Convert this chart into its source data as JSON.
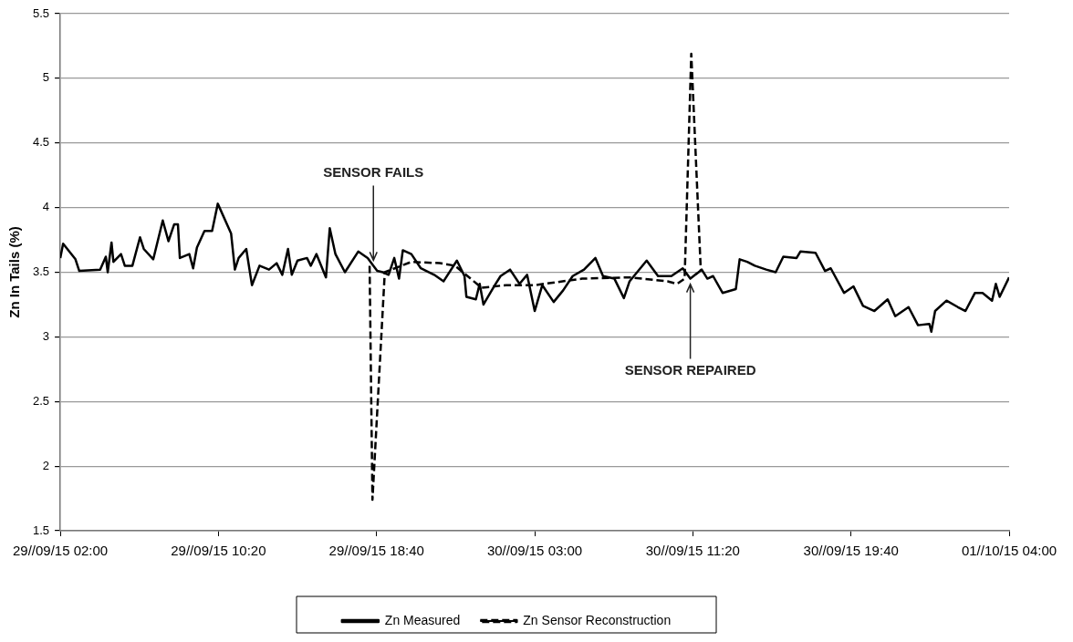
{
  "chart_data": {
    "type": "line",
    "ylabel": "Zn In Tails (%)",
    "xlim": [
      "--09-29T02:00",
      "--10-01T04:00"
    ],
    "xticks": [
      {
        "value": "--09-29T02:00",
        "label": "29//09/15 02:00"
      },
      {
        "value": "--09-29T10:20",
        "label": "29//09/15 10:20"
      },
      {
        "value": "--09-29T18:40",
        "label": "29//09/15 18:40"
      },
      {
        "value": "--09-30T03:00",
        "label": "30//09/15 03:00"
      },
      {
        "value": "--09-30T11:20",
        "label": "30//09/15 11:20"
      },
      {
        "value": "--09-30T19:40",
        "label": "30//09/15 19:40"
      },
      {
        "value": "--10-01T04:00",
        "label": "01//10/15 04:00"
      }
    ],
    "ylim": [
      1.5,
      5.5
    ],
    "yticks": [
      1.5,
      2,
      2.5,
      3,
      3.5,
      4,
      4.5,
      5,
      5.5
    ],
    "grid": "y",
    "legend": "bottom",
    "marker": "none",
    "annotations": [
      {
        "text": "SENSOR FAILS",
        "x": "--09-29T18:30",
        "y": 3.55
      },
      {
        "text": "SENSOR REPAIRED",
        "x": "--09-30T11:12",
        "y": 3.45
      }
    ],
    "series": [
      {
        "name": "Zn Measured",
        "color": "#000000",
        "line_style": "solid",
        "x": [
          "--09-29T02:00",
          "--09-29T02:09",
          "--09-29T02:48",
          "--09-29T03:00",
          "--09-29T04:06",
          "--09-29T04:24",
          "--09-29T04:30",
          "--09-29T04:42",
          "--09-29T04:48",
          "--09-29T05:12",
          "--09-29T05:24",
          "--09-29T05:48",
          "--09-29T06:12",
          "--09-29T06:24",
          "--09-29T06:54",
          "--09-29T07:24",
          "--09-29T07:42",
          "--09-29T08:00",
          "--09-29T08:12",
          "--09-29T08:18",
          "--09-29T08:48",
          "--09-29T09:00",
          "--09-29T09:12",
          "--09-29T09:36",
          "--09-29T10:00",
          "--09-29T10:18",
          "--09-29T11:00",
          "--09-29T11:12",
          "--09-29T11:24",
          "--09-29T11:48",
          "--09-29T12:06",
          "--09-29T12:30",
          "--09-29T13:00",
          "--09-29T13:24",
          "--09-29T13:42",
          "--09-29T14:00",
          "--09-29T14:12",
          "--09-29T14:30",
          "--09-29T15:00",
          "--09-29T15:12",
          "--09-29T15:30",
          "--09-29T16:00",
          "--09-29T16:12",
          "--09-29T16:30",
          "--09-29T17:00",
          "--09-29T17:42",
          "--09-29T18:12",
          "--09-29T18:30",
          "--09-29T18:42",
          "--09-29T19:00",
          "--09-29T19:18",
          "--09-29T19:36",
          "--09-29T19:51",
          "--09-29T20:03",
          "--09-29T20:30",
          "--09-29T21:00",
          "--09-29T21:42",
          "--09-29T22:12",
          "--09-29T22:54",
          "--09-29T23:18",
          "--09-29T23:24",
          "--09-29T23:54",
          "--09-30T00:06",
          "--09-30T00:18",
          "--09-30T00:54",
          "--09-30T01:12",
          "--09-30T01:42",
          "--09-30T02:12",
          "--09-30T02:36",
          "--09-30T03:00",
          "--09-30T03:24",
          "--09-30T04:00",
          "--09-30T04:30",
          "--09-30T05:00",
          "--09-30T05:36",
          "--09-30T06:12",
          "--09-30T06:36",
          "--09-30T07:12",
          "--09-30T07:42",
          "--09-30T08:00",
          "--09-30T08:54",
          "--09-30T09:30",
          "--09-30T10:12",
          "--09-30T10:48",
          "--09-30T11:12",
          "--09-30T11:48",
          "--09-30T12:06",
          "--09-30T12:24",
          "--09-30T12:54",
          "--09-30T13:36",
          "--09-30T13:48",
          "--09-30T14:12",
          "--09-30T14:36",
          "--09-30T15:12",
          "--09-30T15:42",
          "--09-30T16:06",
          "--09-30T16:48",
          "--09-30T17:00",
          "--09-30T17:48",
          "--09-30T18:18",
          "--09-30T18:36",
          "--09-30T19:18",
          "--09-30T19:48",
          "--09-30T20:18",
          "--09-30T20:54",
          "--09-30T21:36",
          "--09-30T22:00",
          "--09-30T22:42",
          "--09-30T23:12",
          "--09-30T23:48",
          "--09-30T23:54",
          "--10-01T00:06",
          "--10-01T00:42",
          "--10-01T01:18",
          "--10-01T01:42",
          "--10-01T02:12",
          "--10-01T02:36",
          "--10-01T03:06",
          "--10-01T03:18",
          "--10-01T03:30",
          "--10-01T04:00"
        ],
        "values": [
          3.61,
          3.72,
          3.6,
          3.51,
          3.52,
          3.62,
          3.5,
          3.73,
          3.58,
          3.64,
          3.55,
          3.55,
          3.77,
          3.68,
          3.6,
          3.9,
          3.74,
          3.87,
          3.87,
          3.61,
          3.64,
          3.53,
          3.69,
          3.82,
          3.82,
          4.03,
          3.8,
          3.52,
          3.61,
          3.68,
          3.4,
          3.55,
          3.52,
          3.57,
          3.48,
          3.68,
          3.48,
          3.59,
          3.61,
          3.55,
          3.64,
          3.46,
          3.84,
          3.64,
          3.5,
          3.66,
          3.61,
          3.55,
          3.51,
          3.5,
          3.48,
          3.61,
          3.45,
          3.67,
          3.64,
          3.53,
          3.48,
          3.43,
          3.59,
          3.47,
          3.31,
          3.29,
          3.41,
          3.25,
          3.4,
          3.47,
          3.52,
          3.41,
          3.48,
          3.2,
          3.4,
          3.27,
          3.36,
          3.47,
          3.52,
          3.61,
          3.47,
          3.45,
          3.3,
          3.43,
          3.59,
          3.47,
          3.47,
          3.53,
          3.45,
          3.52,
          3.45,
          3.47,
          3.34,
          3.37,
          3.6,
          3.58,
          3.55,
          3.52,
          3.5,
          3.62,
          3.61,
          3.66,
          3.65,
          3.51,
          3.53,
          3.34,
          3.39,
          3.24,
          3.2,
          3.29,
          3.16,
          3.23,
          3.09,
          3.1,
          3.04,
          3.2,
          3.28,
          3.23,
          3.2,
          3.34,
          3.34,
          3.28,
          3.41,
          3.31,
          3.46
        ]
      },
      {
        "name": "Zn Sensor Reconstruction",
        "color": "#000000",
        "line_style": "dashed",
        "x": [
          "--09-29T18:18",
          "--09-29T18:27",
          "--09-29T19:06",
          "--09-29T20:30",
          "--09-29T22:00",
          "--09-29T22:48",
          "--09-30T00:12",
          "--09-30T01:30",
          "--09-30T03:00",
          "--09-30T05:30",
          "--09-30T08:00",
          "--09-30T10:00",
          "--09-30T10:30",
          "--09-30T10:54",
          "--09-30T11:15",
          "--09-30T11:45"
        ],
        "values": [
          3.55,
          1.74,
          3.5,
          3.58,
          3.57,
          3.55,
          3.38,
          3.4,
          3.4,
          3.45,
          3.46,
          3.43,
          3.41,
          3.45,
          5.19,
          3.52
        ]
      }
    ]
  }
}
